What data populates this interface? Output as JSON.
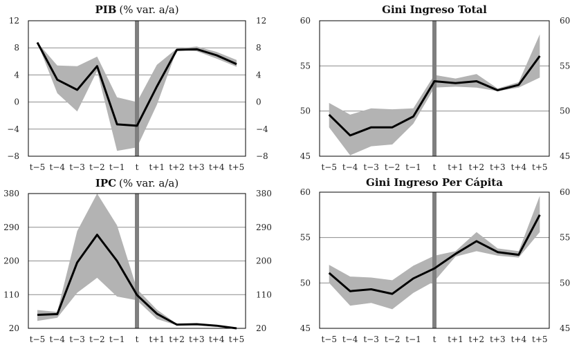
{
  "chart_data": [
    {
      "type": "line",
      "title": "PIB",
      "title_suffix": "(% var. a/a)",
      "categories": [
        "t−5",
        "t−4",
        "t−3",
        "t−2",
        "t−1",
        "t",
        "t+1",
        "t+2",
        "t+3",
        "t+4",
        "t+5"
      ],
      "values": [
        8.8,
        3.3,
        1.8,
        5.3,
        -3.3,
        -3.5,
        2.3,
        7.7,
        7.8,
        6.9,
        5.6
      ],
      "band_upper": [
        8.8,
        5.4,
        5.3,
        6.7,
        0.7,
        0.0,
        5.5,
        7.9,
        8.2,
        7.4,
        6.2
      ],
      "band_lower": [
        8.8,
        1.3,
        -1.4,
        4.6,
        -7.2,
        -6.7,
        -0.4,
        7.7,
        7.5,
        6.4,
        5.2
      ],
      "ylim": [
        -8,
        12
      ],
      "yticks": [
        -8,
        -4,
        0,
        4,
        8,
        12
      ],
      "ytick_labels": [
        "−8",
        "−4",
        "0",
        "4",
        "8",
        "12"
      ],
      "right_axis_mirrored": true,
      "vline_at": "t",
      "grid": true,
      "colors": {
        "line": "#000000",
        "band": "#b3b3b3",
        "vline": "#7f7f7f",
        "grid": "#8c8c8c"
      }
    },
    {
      "type": "line",
      "title": "Gini Ingreso Total",
      "title_suffix": "",
      "categories": [
        "t−5",
        "t−4",
        "t−3",
        "t−2",
        "t−1",
        "t",
        "t+1",
        "t+2",
        "t+3",
        "t+4",
        "t+5"
      ],
      "values": [
        49.6,
        47.3,
        48.2,
        48.2,
        49.4,
        53.3,
        53.1,
        53.3,
        52.3,
        52.9,
        56.1
      ],
      "band_upper": [
        50.9,
        49.6,
        50.3,
        50.2,
        50.3,
        54.0,
        53.6,
        54.1,
        52.5,
        53.2,
        58.5
      ],
      "band_lower": [
        48.2,
        45.1,
        46.1,
        46.3,
        48.6,
        52.6,
        52.7,
        52.6,
        52.2,
        52.6,
        53.7
      ],
      "ylim": [
        45,
        60
      ],
      "yticks": [
        45,
        50,
        55,
        60
      ],
      "ytick_labels": [
        "45",
        "50",
        "55",
        "60"
      ],
      "right_axis_mirrored": true,
      "vline_at": "t",
      "grid": true,
      "colors": {
        "line": "#000000",
        "band": "#b3b3b3",
        "vline": "#7f7f7f",
        "grid": "#8c8c8c"
      }
    },
    {
      "type": "line",
      "title": "IPC",
      "title_suffix": "(% var. a/a)",
      "categories": [
        "t−5",
        "t−4",
        "t−3",
        "t−2",
        "t−1",
        "t",
        "t+1",
        "t+2",
        "t+3",
        "t+4",
        "t+5"
      ],
      "values": [
        56,
        58,
        196,
        270,
        200,
        109,
        59,
        30,
        31,
        27,
        20
      ],
      "band_upper": [
        69,
        64,
        280,
        380,
        295,
        125,
        70,
        32,
        33,
        28,
        20
      ],
      "band_lower": [
        40,
        48,
        115,
        155,
        105,
        95,
        45,
        28,
        28,
        25,
        18
      ],
      "ylim": [
        20,
        380
      ],
      "yticks": [
        20,
        110,
        200,
        290,
        380
      ],
      "ytick_labels": [
        "20",
        "110",
        "200",
        "290",
        "380"
      ],
      "right_axis_mirrored": true,
      "vline_at": "t",
      "grid": true,
      "colors": {
        "line": "#000000",
        "band": "#b3b3b3",
        "vline": "#7f7f7f",
        "grid": "#8c8c8c"
      }
    },
    {
      "type": "line",
      "title": "Gini Ingreso Per Cápita",
      "title_suffix": "",
      "categories": [
        "t−5",
        "t−4",
        "t−3",
        "t−2",
        "t−1",
        "t",
        "t+1",
        "t+2",
        "t+3",
        "t+4",
        "t+5"
      ],
      "values": [
        51.1,
        49.1,
        49.3,
        48.8,
        50.5,
        51.6,
        53.2,
        54.6,
        53.4,
        53.1,
        57.5
      ],
      "band_upper": [
        52.0,
        50.7,
        50.6,
        50.3,
        51.9,
        53.0,
        53.5,
        55.6,
        53.8,
        53.5,
        59.6
      ],
      "band_lower": [
        50.0,
        47.5,
        47.8,
        47.1,
        48.9,
        50.2,
        52.9,
        53.5,
        53.0,
        52.8,
        55.6
      ],
      "ylim": [
        45,
        60
      ],
      "yticks": [
        45,
        50,
        55,
        60
      ],
      "ytick_labels": [
        "45",
        "50",
        "55",
        "60"
      ],
      "right_axis_mirrored": true,
      "vline_at": "t",
      "grid": true,
      "colors": {
        "line": "#000000",
        "band": "#b3b3b3",
        "vline": "#7f7f7f",
        "grid": "#8c8c8c"
      }
    }
  ]
}
